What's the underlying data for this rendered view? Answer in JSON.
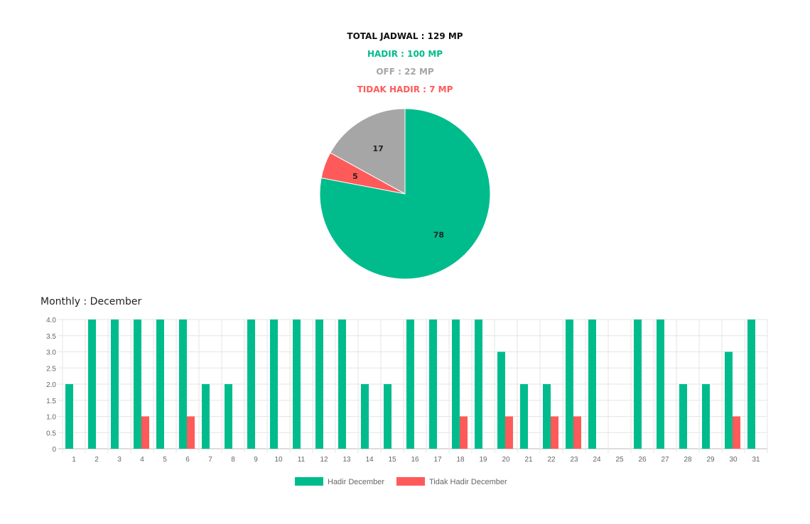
{
  "summary": {
    "total": "TOTAL JADWAL : 129 MP",
    "hadir": "HADIR : 100 MP",
    "off": "OFF : 22 MP",
    "tidak_hadir": "TIDAK HADIR : 7 MP"
  },
  "colors": {
    "hadir": "#00bc8c",
    "off": "#a6a6a6",
    "tidak_hadir": "#ff5a5a",
    "total": "#111111"
  },
  "monthly_title": "Monthly : December",
  "chart_data": [
    {
      "type": "pie",
      "labels": [
        "Hadir",
        "Tidak Hadir",
        "Off"
      ],
      "values": [
        78,
        5,
        17
      ],
      "colors": [
        "#00bc8c",
        "#ff5a5a",
        "#a6a6a6"
      ]
    },
    {
      "type": "bar",
      "categories": [
        "1",
        "2",
        "3",
        "4",
        "5",
        "6",
        "7",
        "8",
        "9",
        "10",
        "11",
        "12",
        "13",
        "14",
        "15",
        "16",
        "17",
        "18",
        "19",
        "20",
        "21",
        "22",
        "23",
        "24",
        "25",
        "26",
        "27",
        "28",
        "29",
        "30",
        "31"
      ],
      "ylim": [
        0,
        4
      ],
      "yticks": [
        "0",
        "0.5",
        "1.0",
        "1.5",
        "2.0",
        "2.5",
        "3.0",
        "3.5",
        "4.0"
      ],
      "grid": true,
      "legend": "bottom",
      "series": [
        {
          "name": "Hadir December",
          "color": "#00bc8c",
          "values": [
            2,
            4,
            4,
            4,
            4,
            4,
            2,
            2,
            4,
            4,
            4,
            4,
            4,
            2,
            2,
            4,
            4,
            4,
            4,
            3,
            2,
            2,
            4,
            4,
            0,
            4,
            4,
            2,
            2,
            3,
            4
          ]
        },
        {
          "name": "Tidak Hadir December",
          "color": "#ff5a5a",
          "values": [
            0,
            0,
            0,
            1,
            0,
            1,
            0,
            0,
            0,
            0,
            0,
            0,
            0,
            0,
            0,
            0,
            0,
            1,
            0,
            1,
            0,
            1,
            1,
            0,
            0,
            0,
            0,
            0,
            0,
            1,
            0
          ]
        }
      ]
    }
  ]
}
